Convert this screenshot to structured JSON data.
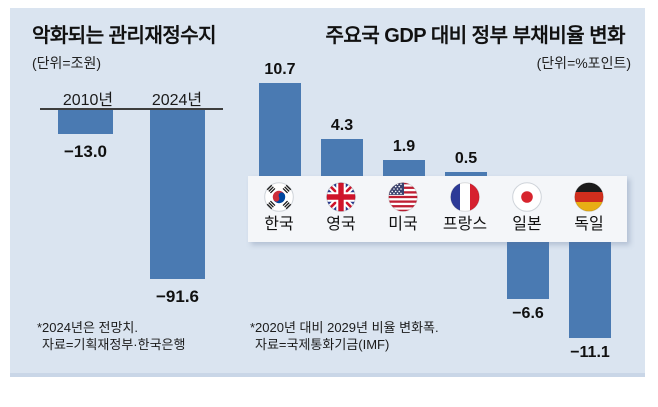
{
  "colors": {
    "panel_bg": "#dae4f0",
    "bar": "#4a7ab2",
    "band_bg": "#f4f6f9",
    "axis_line": "#3d3d3d",
    "text": "#141414"
  },
  "left_chart": {
    "title": "악화되는 관리재정수지",
    "unit_label": "(단위=조원)",
    "categories": [
      "2010년",
      "2024년"
    ],
    "values": [
      -13.0,
      -91.6
    ],
    "value_labels": [
      "−13.0",
      "−91.6"
    ],
    "footnotes": [
      "*2024년은 전망치.",
      "자료=기획재정부·한국은행"
    ]
  },
  "right_chart": {
    "title": "주요국 GDP 대비 정부 부채비율 변화",
    "unit_label": "(단위=%포인트)",
    "countries": [
      {
        "name": "한국",
        "flag": "south-korea",
        "value": 10.7,
        "value_label": "10.7"
      },
      {
        "name": "영국",
        "flag": "united-kingdom",
        "value": 4.3,
        "value_label": "4.3"
      },
      {
        "name": "미국",
        "flag": "united-states",
        "value": 1.9,
        "value_label": "1.9"
      },
      {
        "name": "프랑스",
        "flag": "france",
        "value": 0.5,
        "value_label": "0.5"
      },
      {
        "name": "일본",
        "flag": "japan",
        "value": -6.6,
        "value_label": "−6.6"
      },
      {
        "name": "독일",
        "flag": "germany",
        "value": -11.1,
        "value_label": "−11.1"
      }
    ],
    "footnotes": [
      "*2020년 대비 2029년 비율 변화폭.",
      "자료=국제통화기금(IMF)"
    ]
  },
  "chart_data": [
    {
      "type": "bar",
      "title": "악화되는 관리재정수지",
      "unit": "조원",
      "categories": [
        "2010년",
        "2024년"
      ],
      "values": [
        -13.0,
        -91.6
      ],
      "ylim": [
        -100,
        0
      ],
      "grid": false,
      "legend": "none",
      "note": "*2024년은 전망치.",
      "source": "자료=기획재정부·한국은행"
    },
    {
      "type": "bar",
      "title": "주요국 GDP 대비 정부 부채비율 변화",
      "unit": "%포인트",
      "categories": [
        "한국",
        "영국",
        "미국",
        "프랑스",
        "일본",
        "독일"
      ],
      "values": [
        10.7,
        4.3,
        1.9,
        0.5,
        -6.6,
        -11.1
      ],
      "ylim": [
        -12,
        11
      ],
      "grid": false,
      "legend": "none",
      "note": "*2020년 대비 2029년 비율 변화폭.",
      "source": "자료=국제통화기금(IMF)"
    }
  ]
}
